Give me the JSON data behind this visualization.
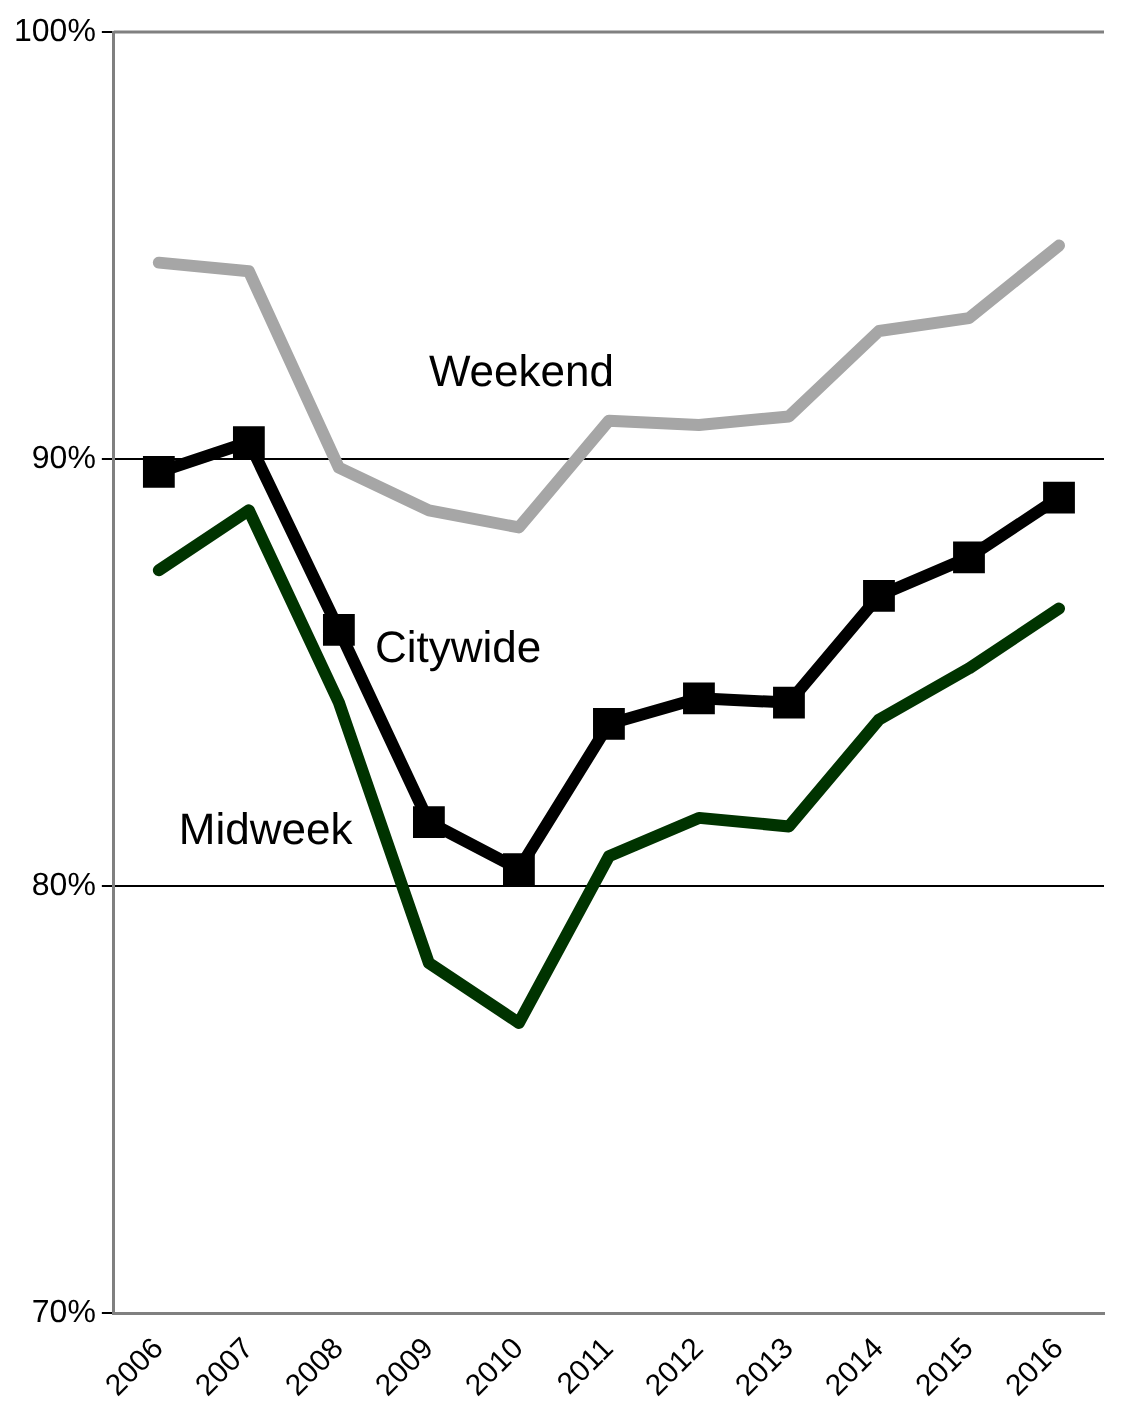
{
  "chart_data": {
    "type": "line",
    "categories": [
      "2006",
      "2007",
      "2008",
      "2009",
      "2010",
      "2011",
      "2012",
      "2013",
      "2014",
      "2015",
      "2016"
    ],
    "series": [
      {
        "name": "Weekend",
        "color": "#a6a6a6",
        "marker": "none",
        "values": [
          94.6,
          94.4,
          89.8,
          88.8,
          88.4,
          90.9,
          90.8,
          91.0,
          93.0,
          93.3,
          95.0
        ]
      },
      {
        "name": "Citywide",
        "color": "#000000",
        "marker": "square",
        "values": [
          89.7,
          90.4,
          86.0,
          81.5,
          80.4,
          83.8,
          84.4,
          84.3,
          86.8,
          87.7,
          89.1
        ]
      },
      {
        "name": "Midweek",
        "color": "#003300",
        "marker": "none",
        "values": [
          87.4,
          88.8,
          84.3,
          78.2,
          76.8,
          80.7,
          81.6,
          81.4,
          83.9,
          85.1,
          86.5
        ]
      }
    ],
    "ylim": [
      70,
      100
    ],
    "yticks": [
      {
        "value": 70,
        "label": "70%"
      },
      {
        "value": 80,
        "label": "80%"
      },
      {
        "value": 90,
        "label": "90%"
      },
      {
        "value": 100,
        "label": "100%"
      }
    ],
    "grid": "y",
    "legend": false,
    "line_style": "solid"
  }
}
